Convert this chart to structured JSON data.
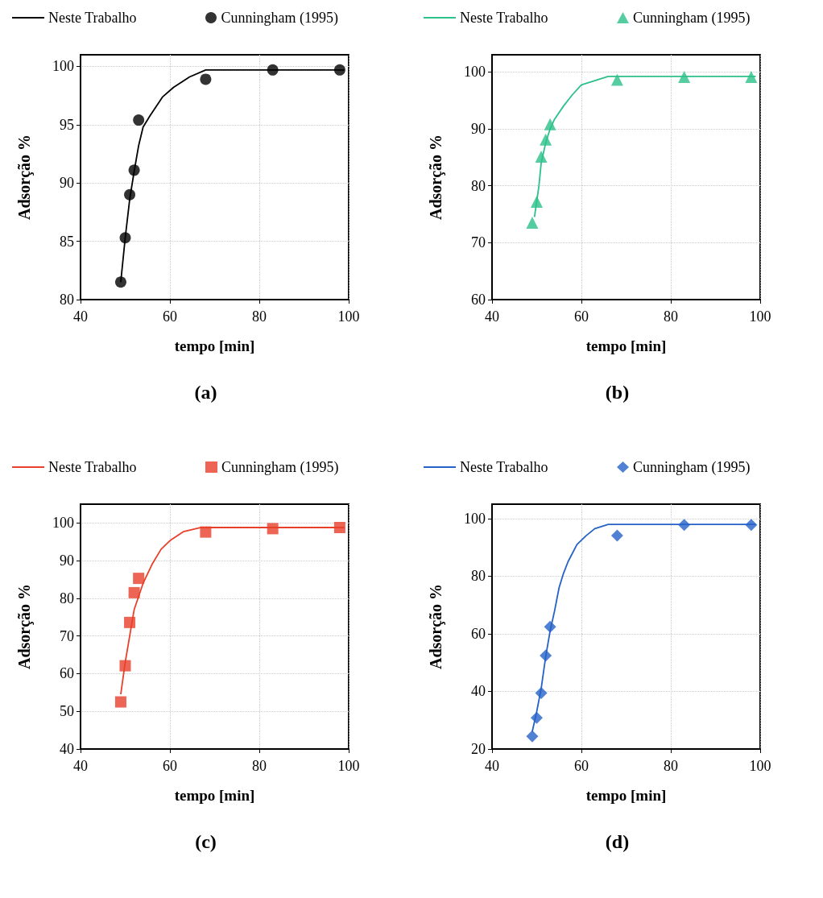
{
  "chart_data": [
    {
      "type": "line",
      "title": "(a)",
      "xlabel": "tempo [min]",
      "ylabel": "Adsorção %",
      "xlim": [
        40,
        100
      ],
      "xticks": [
        40,
        60,
        80,
        100
      ],
      "ylim": [
        80,
        101
      ],
      "yticks": [
        80,
        85,
        90,
        95,
        100
      ],
      "grid": true,
      "legend": "top",
      "series": [
        {
          "name": "Neste Trabalho",
          "color": "#000000",
          "marker": "none",
          "x": [
            49,
            50,
            51,
            52,
            53,
            54,
            55.6,
            58.4,
            60.8,
            64.4,
            68,
            99
          ],
          "values": [
            81.5,
            85.3,
            88.6,
            91,
            93.2,
            94.8,
            95.8,
            97.4,
            98.2,
            99.1,
            99.7,
            99.7
          ]
        },
        {
          "name": "Cunningham (1995)",
          "type": "scatter",
          "color": "#000000",
          "marker": "circle",
          "x": [
            49,
            50,
            51,
            52,
            53,
            68,
            83,
            98
          ],
          "values": [
            81.5,
            85.3,
            89,
            91.1,
            95.4,
            98.9,
            99.7,
            99.7
          ]
        }
      ]
    },
    {
      "type": "line",
      "title": "(b)",
      "xlabel": "tempo [min]",
      "ylabel": "Adsorção %",
      "xlim": [
        40,
        100
      ],
      "xticks": [
        40,
        60,
        80,
        100
      ],
      "ylim": [
        60,
        103
      ],
      "yticks": [
        60,
        70,
        80,
        90,
        100
      ],
      "grid": true,
      "legend": "top",
      "series": [
        {
          "name": "Neste Trabalho",
          "color": "#2cc08a",
          "marker": "none",
          "x": [
            49.5,
            50.5,
            51,
            52,
            53,
            54,
            56,
            58,
            60,
            62,
            66,
            99
          ],
          "values": [
            74.5,
            80,
            84,
            87.5,
            90,
            91.7,
            94,
            96,
            97.7,
            98.2,
            99.2,
            99.2
          ]
        },
        {
          "name": "Cunningham (1995)",
          "type": "scatter",
          "color": "#2cc08a",
          "marker": "triangle",
          "x": [
            49,
            50,
            51,
            52,
            53,
            68,
            83,
            98
          ],
          "values": [
            73.5,
            77.2,
            85.1,
            88.1,
            90.8,
            98.6,
            99.1,
            99.1
          ]
        }
      ]
    },
    {
      "type": "line",
      "title": "(c)",
      "xlabel": "tempo [min]",
      "ylabel": "Adsorção %",
      "xlim": [
        40,
        100
      ],
      "xticks": [
        40,
        60,
        80,
        100
      ],
      "ylim": [
        40,
        105
      ],
      "yticks": [
        40,
        50,
        60,
        70,
        80,
        90,
        100
      ],
      "grid": true,
      "legend": "top",
      "series": [
        {
          "name": "Neste Trabalho",
          "color": "#e8402a",
          "marker": "none",
          "x": [
            49,
            50,
            51,
            52,
            53,
            54,
            56,
            58,
            60,
            63,
            67,
            99
          ],
          "values": [
            54.5,
            63,
            70,
            77,
            80.5,
            84,
            89,
            93,
            95.3,
            97.7,
            98.8,
            98.8
          ]
        },
        {
          "name": "Cunningham (1995)",
          "type": "scatter",
          "color": "#e8402a",
          "marker": "square",
          "x": [
            49,
            50,
            51,
            52,
            53,
            68,
            83,
            98
          ],
          "values": [
            52.5,
            62.1,
            73.6,
            81.5,
            85.3,
            97.6,
            98.5,
            98.8
          ]
        }
      ]
    },
    {
      "type": "line",
      "title": "(d)",
      "xlabel": "tempo [min]",
      "ylabel": "Adsorção %",
      "xlim": [
        40,
        100
      ],
      "xticks": [
        40,
        60,
        80,
        100
      ],
      "ylim": [
        20,
        105
      ],
      "yticks": [
        20,
        40,
        60,
        80,
        100
      ],
      "grid": true,
      "legend": "top",
      "series": [
        {
          "name": "Neste Trabalho",
          "color": "#2462c8",
          "marker": "none",
          "x": [
            49,
            50,
            51,
            52,
            53,
            54,
            55,
            56,
            57,
            59,
            61,
            63,
            66,
            99
          ],
          "values": [
            26,
            33,
            41,
            52,
            61,
            68,
            76,
            81,
            85,
            91,
            94,
            96.5,
            98,
            98
          ]
        },
        {
          "name": "Cunningham (1995)",
          "type": "scatter",
          "color": "#2462c8",
          "marker": "diamond",
          "x": [
            49,
            50,
            51,
            52,
            53,
            68,
            83,
            98
          ],
          "values": [
            24.4,
            30.8,
            39.4,
            52.4,
            62.4,
            94.1,
            97.8,
            97.8
          ]
        }
      ]
    }
  ]
}
